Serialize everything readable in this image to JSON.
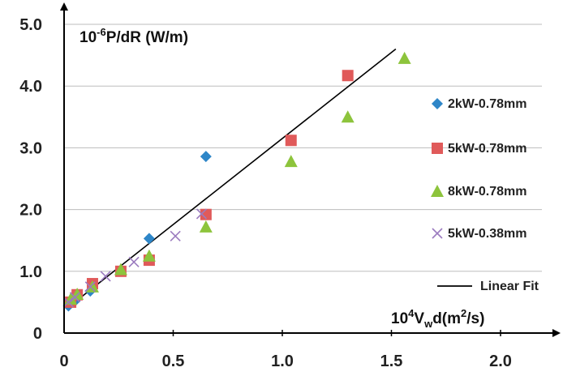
{
  "chart_data": {
    "type": "scatter",
    "ylabel": {
      "pre": "10",
      "sup": "-6",
      "post": "P/dR (W/m)"
    },
    "xlabel": {
      "pre": "10",
      "sup": "4",
      "v": "V",
      "sub": "w",
      "d": "d(m",
      "sup2": "2",
      "post": "/s)"
    },
    "x_ticks": [
      "0",
      "0.5",
      "1.0",
      "1.5",
      "2.0"
    ],
    "y_ticks": [
      "0",
      "1.0",
      "2.0",
      "3.0",
      "4.0",
      "5.0"
    ],
    "xlim": [
      0,
      2.0
    ],
    "ylim": [
      0,
      5.0
    ],
    "grid": "horizontal",
    "legend_position": "right",
    "series": [
      {
        "name": "2kW-0.78mm",
        "marker": "diamond",
        "color": "#2e86c8",
        "x": [
          0.02,
          0.05,
          0.12,
          0.39,
          0.65
        ],
        "y": [
          0.44,
          0.52,
          0.68,
          1.53,
          2.86
        ]
      },
      {
        "name": "5kW-0.78mm",
        "marker": "square",
        "color": "#e05a5a",
        "x": [
          0.03,
          0.06,
          0.13,
          0.26,
          0.39,
          0.65,
          1.04,
          1.3
        ],
        "y": [
          0.5,
          0.62,
          0.8,
          1.0,
          1.18,
          1.92,
          3.12,
          4.17
        ]
      },
      {
        "name": "8kW-0.78mm",
        "marker": "triangle",
        "color": "#8dc43c",
        "x": [
          0.03,
          0.06,
          0.13,
          0.26,
          0.39,
          0.65,
          1.04,
          1.3,
          1.56
        ],
        "y": [
          0.55,
          0.63,
          0.75,
          1.03,
          1.25,
          1.72,
          2.78,
          3.5,
          4.45
        ]
      },
      {
        "name": "5kW-0.38mm",
        "marker": "x",
        "color": "#9b7bbf",
        "x": [
          0.02,
          0.05,
          0.12,
          0.19,
          0.32,
          0.51,
          0.63
        ],
        "y": [
          0.5,
          0.58,
          0.75,
          0.92,
          1.15,
          1.57,
          1.93
        ]
      }
    ],
    "fit": {
      "name": "Linear Fit",
      "color": "#000000",
      "x": [
        0.02,
        1.52
      ],
      "y": [
        0.42,
        4.6
      ]
    }
  }
}
